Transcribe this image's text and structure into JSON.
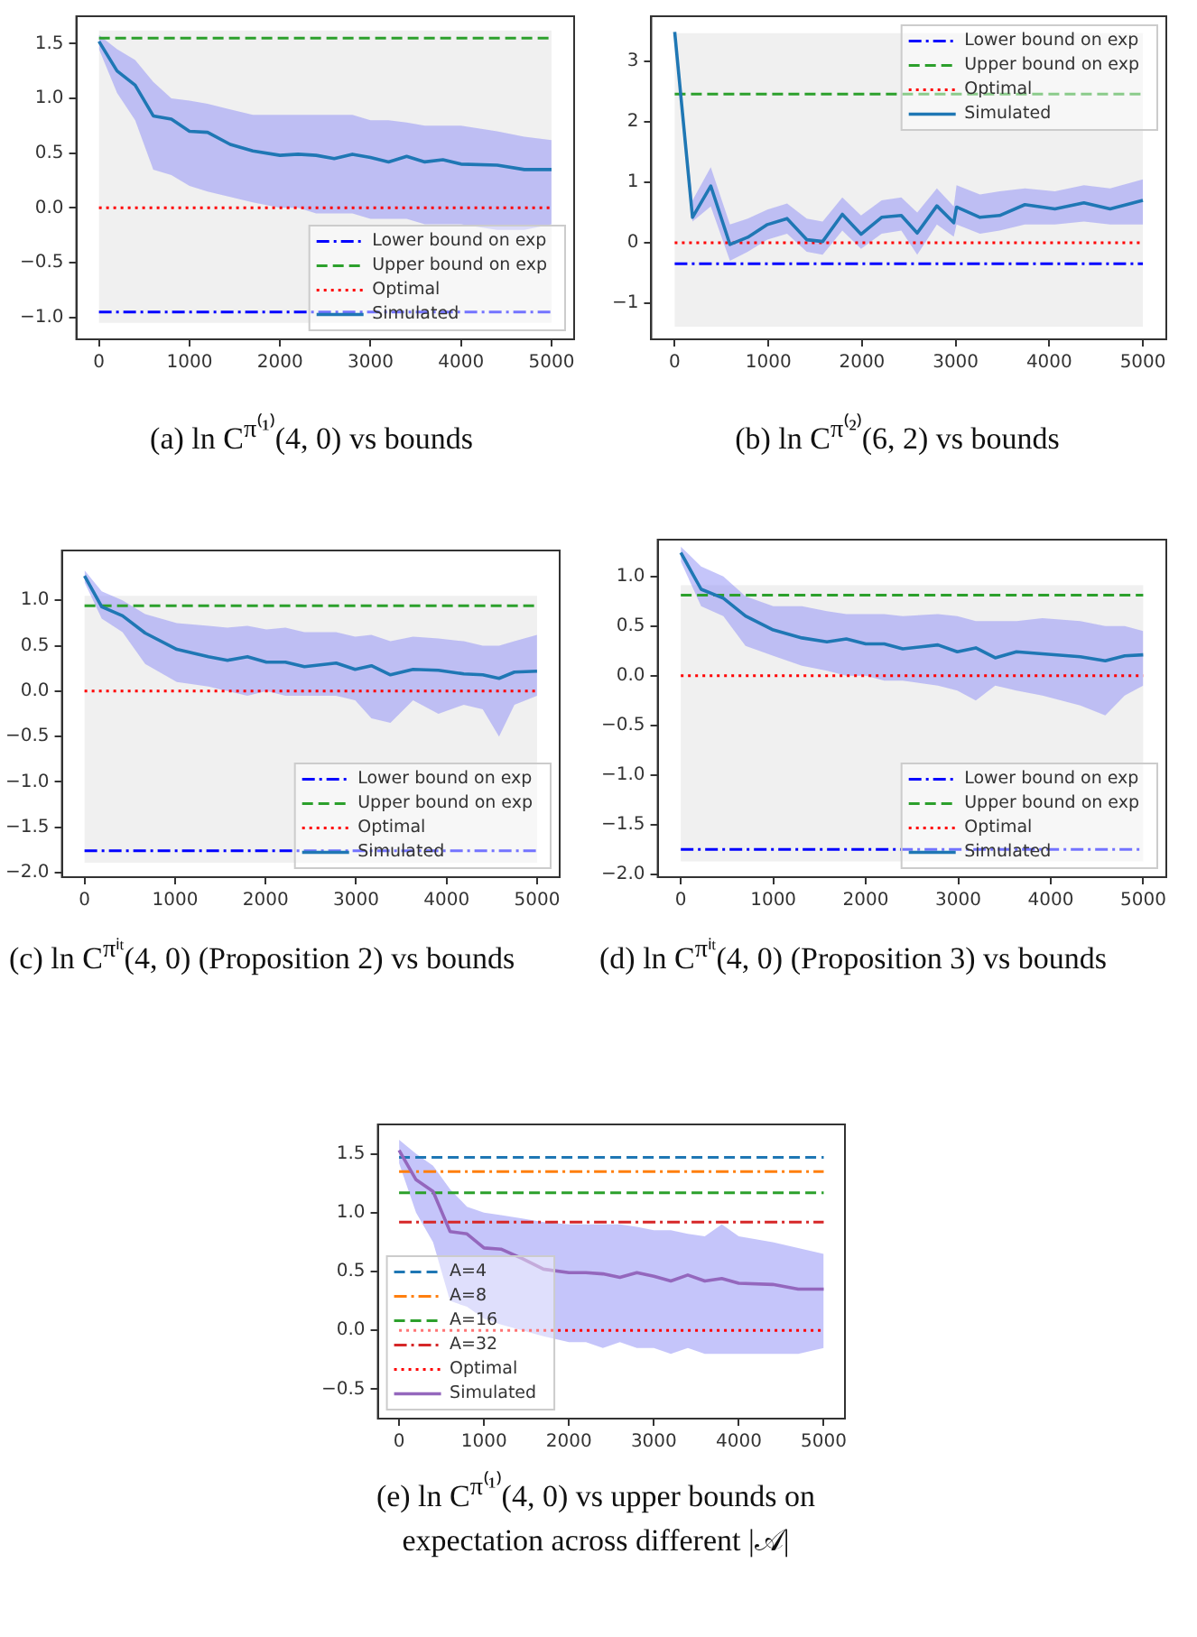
{
  "chart_data": [
    {
      "type": "line",
      "title": "(a) ln C$^{π⁽¹⁾}$(4, 0) vs bounds",
      "xlim": [
        -250,
        5250
      ],
      "ylim": [
        -1.2,
        1.75
      ],
      "xticks": [
        0,
        1000,
        2000,
        3000,
        4000,
        5000
      ],
      "yticks": [
        {
          "value": -1,
          "label": "−1.0"
        },
        {
          "value": -0.5,
          "label": "−0.5"
        },
        {
          "value": 0,
          "label": "0.0"
        },
        {
          "value": 0.5,
          "label": "0.5"
        },
        {
          "value": 1,
          "label": "1.0"
        },
        {
          "value": 1.5,
          "label": "1.5"
        }
      ],
      "legend": "bottom right",
      "bands": [
        {
          "axis": "y",
          "from": -1.05,
          "to": 1.62,
          "color": "#f0f0f0"
        }
      ],
      "series": [
        {
          "name": "Lower bound on exp",
          "color": "#0000ff",
          "line_style": "dashdot",
          "x": [
            0,
            5000
          ],
          "values": [
            -0.95,
            -0.95
          ]
        },
        {
          "name": "Upper bound on exp",
          "color": "#2ca02c",
          "line_style": "dashed",
          "x": [
            0,
            5000
          ],
          "values": [
            1.55,
            1.55
          ]
        },
        {
          "name": "Optimal",
          "color": "#ff0000",
          "line_style": "dotted",
          "x": [
            0,
            5000
          ],
          "values": [
            0,
            0
          ]
        },
        {
          "name": "Simulated",
          "color": "#1f77b4",
          "line_style": "solid",
          "x": [
            0,
            200,
            400,
            600,
            800,
            1000,
            1200,
            1450,
            1700,
            2000,
            2200,
            2400,
            2600,
            2800,
            3000,
            3200,
            3400,
            3600,
            3800,
            4000,
            4400,
            4700,
            5000
          ],
          "values": [
            1.52,
            1.25,
            1.12,
            0.84,
            0.81,
            0.7,
            0.69,
            0.58,
            0.52,
            0.48,
            0.49,
            0.48,
            0.45,
            0.49,
            0.46,
            0.42,
            0.47,
            0.42,
            0.44,
            0.4,
            0.39,
            0.35,
            0.35
          ],
          "upper": [
            1.58,
            1.45,
            1.35,
            1.15,
            1.0,
            0.98,
            0.95,
            0.9,
            0.85,
            0.85,
            0.85,
            0.85,
            0.85,
            0.85,
            0.8,
            0.8,
            0.78,
            0.75,
            0.75,
            0.75,
            0.7,
            0.65,
            0.62
          ],
          "lower": [
            1.45,
            1.05,
            0.8,
            0.35,
            0.3,
            0.2,
            0.15,
            0.1,
            0.05,
            0.0,
            0.0,
            -0.05,
            -0.05,
            -0.05,
            -0.1,
            -0.1,
            -0.1,
            -0.15,
            -0.15,
            -0.15,
            -0.2,
            -0.2,
            -0.15
          ]
        }
      ]
    },
    {
      "type": "line",
      "title": "(b) ln C$^{π⁽²⁾}$(6, 2) vs bounds",
      "xlim": [
        -250,
        5250
      ],
      "ylim": [
        -1.6,
        3.75
      ],
      "xticks": [
        0,
        1000,
        2000,
        3000,
        4000,
        5000
      ],
      "yticks": [
        {
          "value": -1,
          "label": "−1"
        },
        0,
        1,
        2,
        3
      ],
      "legend": "top right",
      "bands": [
        {
          "axis": "y",
          "from": -1.39,
          "to": 3.47,
          "color": "#f0f0f0"
        }
      ],
      "series": [
        {
          "name": "Lower bound on exp",
          "color": "#0000ff",
          "line_style": "dashdot",
          "x": [
            0,
            5000
          ],
          "values": [
            -0.35,
            -0.35
          ]
        },
        {
          "name": "Upper bound on exp",
          "color": "#2ca02c",
          "line_style": "dashed",
          "x": [
            0,
            5000
          ],
          "values": [
            2.46,
            2.46
          ]
        },
        {
          "name": "Optimal",
          "color": "#ff0000",
          "line_style": "dotted",
          "x": [
            0,
            5000
          ],
          "values": [
            0,
            0
          ]
        },
        {
          "name": "Simulated",
          "color": "#1f77b4",
          "line_style": "solid",
          "x": [
            0,
            190,
            385,
            590,
            780,
            990,
            1200,
            1410,
            1580,
            1790,
            1990,
            2210,
            2420,
            2590,
            2800,
            2980,
            3010,
            3260,
            3470,
            3740,
            4060,
            4370,
            4650,
            5000
          ],
          "values": [
            3.49,
            0.42,
            0.94,
            -0.03,
            0.09,
            0.3,
            0.4,
            0.05,
            0.02,
            0.47,
            0.14,
            0.42,
            0.45,
            0.16,
            0.61,
            0.33,
            0.59,
            0.42,
            0.45,
            0.63,
            0.56,
            0.66,
            0.56,
            0.7
          ],
          "upper": [
            3.5,
            0.7,
            1.25,
            0.3,
            0.4,
            0.55,
            0.65,
            0.4,
            0.35,
            0.75,
            0.45,
            0.7,
            0.75,
            0.5,
            0.9,
            0.6,
            0.95,
            0.8,
            0.85,
            0.9,
            0.85,
            0.95,
            0.9,
            1.05
          ],
          "lower": [
            3.45,
            0.35,
            0.6,
            -0.3,
            -0.15,
            0.05,
            0.15,
            -0.15,
            -0.2,
            0.2,
            -0.1,
            0.15,
            0.2,
            -0.2,
            0.3,
            0.1,
            0.3,
            0.15,
            0.2,
            0.3,
            0.3,
            0.35,
            0.3,
            0.3
          ]
        }
      ]
    },
    {
      "type": "line",
      "title": "(c) ln C$^{πⁱᵗ}$(4, 0) (Proposition 2) vs bounds",
      "xlim": [
        -250,
        5250
      ],
      "ylim": [
        -2.05,
        1.55
      ],
      "xticks": [
        0,
        1000,
        2000,
        3000,
        4000,
        5000
      ],
      "yticks": [
        {
          "value": -2,
          "label": "−2.0"
        },
        {
          "value": -1.5,
          "label": "−1.5"
        },
        {
          "value": -1,
          "label": "−1.0"
        },
        {
          "value": -0.5,
          "label": "−0.5"
        },
        {
          "value": 0,
          "label": "0.0"
        },
        {
          "value": 0.5,
          "label": "0.5"
        },
        {
          "value": 1,
          "label": "1.0"
        }
      ],
      "legend": "bottom right",
      "bands": [
        {
          "axis": "y",
          "from": -1.89,
          "to": 1.05,
          "color": "#f0f0f0"
        }
      ],
      "series": [
        {
          "name": "Lower bound on exp",
          "color": "#0000ff",
          "line_style": "dashdot",
          "x": [
            0,
            5000
          ],
          "values": [
            -1.76,
            -1.76
          ]
        },
        {
          "name": "Upper bound on exp",
          "color": "#2ca02c",
          "line_style": "dashed",
          "x": [
            0,
            5000
          ],
          "values": [
            0.94,
            0.94
          ]
        },
        {
          "name": "Optimal",
          "color": "#ff0000",
          "line_style": "dotted",
          "x": [
            0,
            5000
          ],
          "values": [
            0,
            0
          ]
        },
        {
          "name": "Simulated",
          "color": "#1f77b4",
          "line_style": "solid",
          "x": [
            0,
            190,
            420,
            670,
            1020,
            1370,
            1580,
            1800,
            2010,
            2220,
            2430,
            2780,
            2990,
            3170,
            3380,
            3630,
            3910,
            4190,
            4400,
            4580,
            4750,
            5000
          ],
          "values": [
            1.27,
            0.93,
            0.83,
            0.64,
            0.46,
            0.38,
            0.34,
            0.38,
            0.32,
            0.32,
            0.27,
            0.31,
            0.24,
            0.28,
            0.18,
            0.24,
            0.23,
            0.19,
            0.18,
            0.14,
            0.21,
            0.22
          ],
          "upper": [
            1.33,
            1.1,
            1.0,
            0.85,
            0.75,
            0.72,
            0.7,
            0.72,
            0.68,
            0.7,
            0.65,
            0.65,
            0.6,
            0.62,
            0.55,
            0.6,
            0.58,
            0.55,
            0.5,
            0.5,
            0.55,
            0.62
          ],
          "lower": [
            1.2,
            0.8,
            0.65,
            0.3,
            0.1,
            0.05,
            0.0,
            -0.05,
            0.0,
            -0.05,
            -0.05,
            -0.05,
            -0.1,
            -0.3,
            -0.35,
            -0.1,
            -0.25,
            -0.15,
            -0.2,
            -0.5,
            -0.15,
            -0.05
          ]
        }
      ]
    },
    {
      "type": "line",
      "title": "(d) ln C$^{πⁱᵗ}$(4, 0) (Proposition 3) vs bounds",
      "xlim": [
        -250,
        5250
      ],
      "ylim": [
        -2.03,
        1.37
      ],
      "xticks": [
        0,
        1000,
        2000,
        3000,
        4000,
        5000
      ],
      "yticks": [
        {
          "value": -2,
          "label": "−2.0"
        },
        {
          "value": -1.5,
          "label": "−1.5"
        },
        {
          "value": -1,
          "label": "−1.0"
        },
        {
          "value": -0.5,
          "label": "−0.5"
        },
        {
          "value": 0,
          "label": "0.0"
        },
        {
          "value": 0.5,
          "label": "0.5"
        },
        {
          "value": 1,
          "label": "1.0"
        }
      ],
      "legend": "bottom right",
      "bands": [
        {
          "axis": "y",
          "from": -1.87,
          "to": 0.91,
          "color": "#f0f0f0"
        }
      ],
      "series": [
        {
          "name": "Lower bound on exp",
          "color": "#0000ff",
          "line_style": "dashdot",
          "x": [
            0,
            5000
          ],
          "values": [
            -1.75,
            -1.75
          ]
        },
        {
          "name": "Upper bound on exp",
          "color": "#2ca02c",
          "line_style": "dashed",
          "x": [
            0,
            5000
          ],
          "values": [
            0.81,
            0.81
          ]
        },
        {
          "name": "Optimal",
          "color": "#ff0000",
          "line_style": "dotted",
          "x": [
            0,
            5000
          ],
          "values": [
            0,
            0
          ]
        },
        {
          "name": "Simulated",
          "color": "#1f77b4",
          "line_style": "solid",
          "x": [
            0,
            220,
            460,
            700,
            1000,
            1310,
            1580,
            1790,
            2000,
            2200,
            2400,
            2780,
            2990,
            3190,
            3400,
            3630,
            3910,
            4320,
            4590,
            4800,
            5000
          ],
          "values": [
            1.24,
            0.87,
            0.78,
            0.6,
            0.46,
            0.38,
            0.34,
            0.37,
            0.32,
            0.32,
            0.27,
            0.31,
            0.24,
            0.28,
            0.18,
            0.24,
            0.22,
            0.19,
            0.15,
            0.2,
            0.21
          ],
          "upper": [
            1.3,
            1.1,
            1.0,
            0.8,
            0.7,
            0.7,
            0.65,
            0.62,
            0.62,
            0.62,
            0.6,
            0.62,
            0.6,
            0.55,
            0.55,
            0.55,
            0.58,
            0.55,
            0.5,
            0.5,
            0.45
          ],
          "lower": [
            1.15,
            0.7,
            0.6,
            0.3,
            0.2,
            0.1,
            0.05,
            0.0,
            0.0,
            -0.05,
            -0.05,
            -0.1,
            -0.15,
            -0.25,
            -0.1,
            -0.15,
            -0.2,
            -0.3,
            -0.4,
            -0.2,
            -0.1
          ]
        }
      ]
    },
    {
      "type": "line",
      "title": "(e) ln C$^{π⁽¹⁾}$(4, 0) vs upper bounds on expectation across different |𝒜|",
      "xlim": [
        -250,
        5250
      ],
      "ylim": [
        -0.75,
        1.75
      ],
      "xticks": [
        0,
        1000,
        2000,
        3000,
        4000,
        5000
      ],
      "yticks": [
        {
          "value": -0.5,
          "label": "−0.5"
        },
        {
          "value": 0,
          "label": "0.0"
        },
        {
          "value": 0.5,
          "label": "0.5"
        },
        {
          "value": 1,
          "label": "1.0"
        },
        {
          "value": 1.5,
          "label": "1.5"
        }
      ],
      "legend": "bottom left",
      "series": [
        {
          "name": "A=4",
          "color": "#1f77b4",
          "line_style": "dashed",
          "x": [
            0,
            5000
          ],
          "values": [
            1.47,
            1.47
          ]
        },
        {
          "name": "A=8",
          "color": "#ff7f0e",
          "line_style": "dashdot",
          "x": [
            0,
            5000
          ],
          "values": [
            1.35,
            1.35
          ]
        },
        {
          "name": "A=16",
          "color": "#2ca02c",
          "line_style": "dashed",
          "x": [
            0,
            5000
          ],
          "values": [
            1.17,
            1.17
          ]
        },
        {
          "name": "A=32",
          "color": "#d62728",
          "line_style": "dashdot",
          "x": [
            0,
            5000
          ],
          "values": [
            0.92,
            0.92
          ]
        },
        {
          "name": "Optimal",
          "color": "#ff0000",
          "line_style": "dotted",
          "x": [
            0,
            5000
          ],
          "values": [
            0,
            0
          ]
        },
        {
          "name": "Simulated",
          "color": "#9467bd",
          "line_style": "solid",
          "x": [
            0,
            200,
            400,
            600,
            800,
            1000,
            1200,
            1450,
            1700,
            2000,
            2200,
            2400,
            2600,
            2800,
            3000,
            3200,
            3400,
            3600,
            3800,
            4000,
            4400,
            4700,
            5000
          ],
          "values": [
            1.53,
            1.28,
            1.18,
            0.84,
            0.82,
            0.7,
            0.69,
            0.61,
            0.52,
            0.49,
            0.49,
            0.48,
            0.45,
            0.49,
            0.46,
            0.42,
            0.47,
            0.42,
            0.44,
            0.4,
            0.39,
            0.35,
            0.35
          ],
          "upper": [
            1.62,
            1.5,
            1.4,
            1.2,
            1.05,
            1.0,
            0.98,
            0.95,
            0.92,
            0.9,
            0.9,
            0.9,
            0.9,
            0.88,
            0.85,
            0.85,
            0.82,
            0.8,
            0.9,
            0.8,
            0.75,
            0.7,
            0.65
          ],
          "lower": [
            1.42,
            1.0,
            0.75,
            0.25,
            0.2,
            0.1,
            0.05,
            0.0,
            -0.05,
            -0.1,
            -0.1,
            -0.15,
            -0.1,
            -0.15,
            -0.15,
            -0.2,
            -0.15,
            -0.2,
            -0.2,
            -0.2,
            -0.2,
            -0.2,
            -0.15
          ]
        }
      ]
    }
  ]
}
